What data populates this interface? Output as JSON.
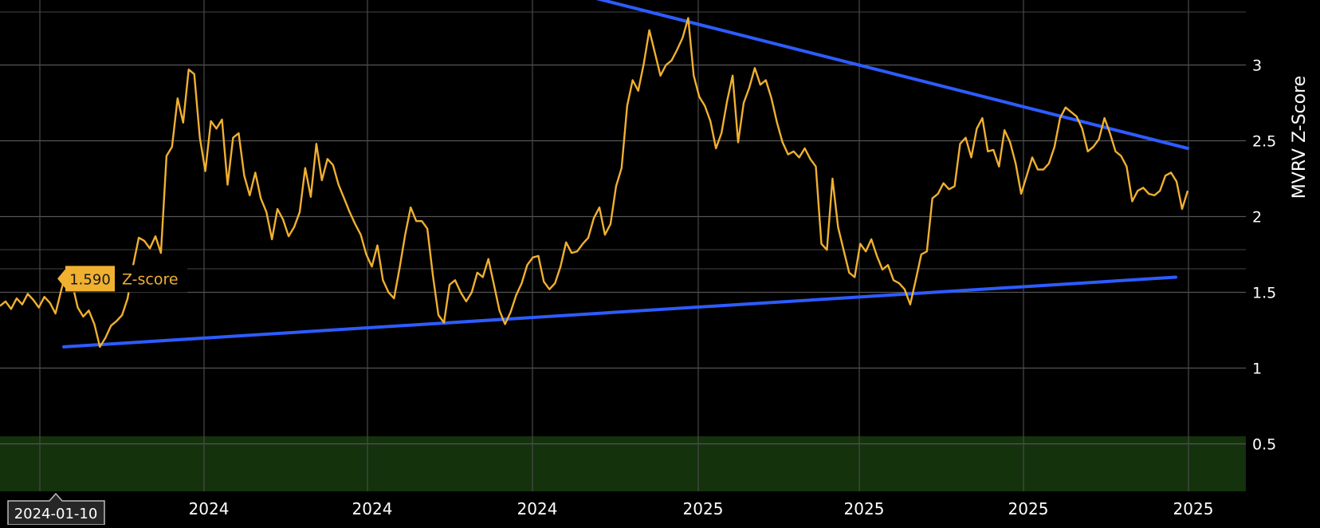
{
  "chart_data": {
    "type": "line",
    "title": "",
    "xlabel": "",
    "ylabel": "MVRV Z-Score",
    "ylim": [
      0.22,
      3.5
    ],
    "y_ticks": [
      0.5,
      1,
      1.5,
      2,
      2.5,
      3
    ],
    "y_tick_labels": [
      "0.5",
      "1",
      "1.5",
      "2",
      "2.5",
      "3"
    ],
    "x_tick_labels": [
      "2024",
      "2024",
      "2024",
      "2024",
      "2025",
      "2025",
      "2025",
      "2025"
    ],
    "grid": true,
    "green_zone": {
      "from": 0.22,
      "to": 0.55
    },
    "series": [
      {
        "name": "Z-score",
        "color": "#f0b030",
        "x_range": [
          0,
          1490
        ],
        "values": [
          1.41,
          1.44,
          1.39,
          1.46,
          1.42,
          1.49,
          1.45,
          1.4,
          1.47,
          1.43,
          1.36,
          1.51,
          1.65,
          1.56,
          1.4,
          1.34,
          1.38,
          1.29,
          1.14,
          1.2,
          1.28,
          1.31,
          1.35,
          1.46,
          1.68,
          1.86,
          1.84,
          1.79,
          1.87,
          1.76,
          2.4,
          2.46,
          2.78,
          2.62,
          2.97,
          2.94,
          2.52,
          2.3,
          2.63,
          2.58,
          2.64,
          2.21,
          2.52,
          2.55,
          2.27,
          2.14,
          2.29,
          2.12,
          2.03,
          1.85,
          2.05,
          1.98,
          1.87,
          1.93,
          2.03,
          2.32,
          2.13,
          2.48,
          2.24,
          2.38,
          2.34,
          2.21,
          2.12,
          2.03,
          1.95,
          1.88,
          1.75,
          1.67,
          1.81,
          1.58,
          1.5,
          1.46,
          1.66,
          1.88,
          2.06,
          1.97,
          1.97,
          1.92,
          1.61,
          1.35,
          1.3,
          1.55,
          1.58,
          1.5,
          1.44,
          1.5,
          1.63,
          1.6,
          1.72,
          1.55,
          1.38,
          1.29,
          1.37,
          1.48,
          1.56,
          1.68,
          1.73,
          1.74,
          1.57,
          1.52,
          1.56,
          1.67,
          1.83,
          1.76,
          1.77,
          1.82,
          1.86,
          1.99,
          2.06,
          1.88,
          1.95,
          2.2,
          2.32,
          2.73,
          2.9,
          2.83,
          3.01,
          3.23,
          3.08,
          2.93,
          3.0,
          3.03,
          3.1,
          3.18,
          3.31,
          2.93,
          2.79,
          2.73,
          2.63,
          2.45,
          2.55,
          2.76,
          2.93,
          2.49,
          2.75,
          2.85,
          2.98,
          2.87,
          2.9,
          2.78,
          2.62,
          2.49,
          2.41,
          2.43,
          2.39,
          2.45,
          2.38,
          2.33,
          1.82,
          1.78,
          2.25,
          1.93,
          1.78,
          1.63,
          1.6,
          1.82,
          1.77,
          1.85,
          1.74,
          1.65,
          1.68,
          1.58,
          1.56,
          1.52,
          1.42,
          1.58,
          1.75,
          1.77,
          2.12,
          2.15,
          2.22,
          2.18,
          2.2,
          2.48,
          2.52,
          2.39,
          2.58,
          2.65,
          2.43,
          2.44,
          2.33,
          2.57,
          2.49,
          2.35,
          2.15,
          2.27,
          2.39,
          2.31,
          2.31,
          2.35,
          2.46,
          2.65,
          2.72,
          2.69,
          2.66,
          2.58,
          2.43,
          2.46,
          2.51,
          2.65,
          2.55,
          2.43,
          2.4,
          2.33,
          2.1,
          2.17,
          2.19,
          2.15,
          2.14,
          2.17,
          2.27,
          2.29,
          2.23,
          2.05,
          2.17
        ]
      }
    ],
    "trendlines": [
      {
        "color": "#2d5cff",
        "points": [
          [
            665,
            3.55
          ],
          [
            1490,
            2.45
          ]
        ]
      },
      {
        "color": "#2d5cff",
        "points": [
          [
            80,
            1.14
          ],
          [
            1475,
            1.6
          ]
        ]
      }
    ],
    "tooltip": {
      "value": "1.590",
      "name": "Z-score",
      "date": "2024-01-10"
    }
  }
}
